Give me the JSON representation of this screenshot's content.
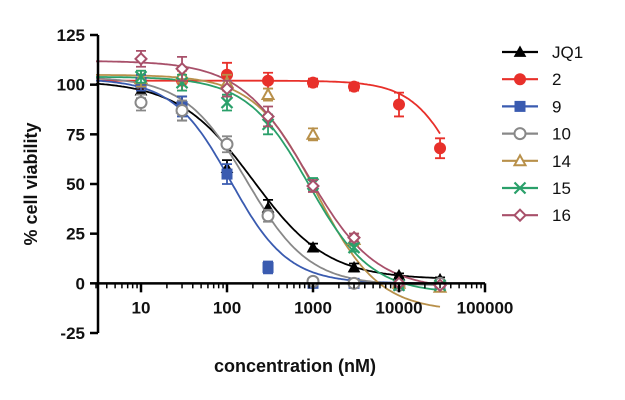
{
  "chart_data": {
    "type": "scatter",
    "xlabel": "concentration (nM)",
    "ylabel": "% cell viability",
    "x_scale": "log",
    "xlim": [
      3,
      100000
    ],
    "ylim": [
      -25,
      125
    ],
    "x_ticks": [
      10,
      100,
      1000,
      10000,
      100000
    ],
    "x_tick_labels": [
      "10",
      "100",
      "1000",
      "10000",
      "100000"
    ],
    "y_ticks": [
      -25,
      0,
      25,
      50,
      75,
      100,
      125
    ],
    "y_tick_labels": [
      "-25",
      "0",
      "25",
      "50",
      "75",
      "100",
      "125"
    ],
    "grid": false,
    "legend_position": "right",
    "series": [
      {
        "name": "JQ1",
        "color": "#000000",
        "marker": "triangle-filled",
        "x": [
          10,
          30,
          100,
          300,
          1000,
          3000,
          10000,
          30000
        ],
        "y": [
          97,
          88,
          58,
          38,
          18,
          8,
          4,
          2
        ],
        "err": [
          4,
          6,
          4,
          4,
          2,
          2,
          1,
          1
        ],
        "fit": {
          "top": 102,
          "bottom": 2,
          "ec50": 200,
          "hill": 1.0
        }
      },
      {
        "name": "2",
        "color": "#e8302a",
        "marker": "circle-filled",
        "x": [
          10,
          30,
          100,
          300,
          1000,
          3000,
          10000,
          30000
        ],
        "y": [
          101,
          102,
          105,
          102,
          101,
          99,
          90,
          68
        ],
        "err": [
          4,
          5,
          6,
          4,
          2,
          2,
          6,
          5
        ],
        "fit": {
          "top": 102,
          "bottom": 0,
          "ec50": 60000,
          "hill": 1.5
        }
      },
      {
        "name": "9",
        "color": "#3a5bb0",
        "marker": "square-filled",
        "x": [
          10,
          30,
          100,
          300,
          1000,
          3000,
          10000,
          30000
        ],
        "y": [
          101,
          89,
          55,
          8,
          0,
          0,
          -1,
          -1
        ],
        "err": [
          4,
          5,
          5,
          3,
          1,
          1,
          1,
          1
        ],
        "fit": {
          "top": 103,
          "bottom": 0,
          "ec50": 110,
          "hill": 1.3
        }
      },
      {
        "name": "10",
        "color": "#888888",
        "marker": "circle-open",
        "x": [
          10,
          30,
          100,
          300,
          1000,
          3000,
          10000,
          30000
        ],
        "y": [
          91,
          87,
          70,
          34,
          1,
          0,
          -1,
          0
        ],
        "err": [
          4,
          5,
          4,
          3,
          1,
          1,
          1,
          1
        ],
        "fit": {
          "top": 104,
          "bottom": -1,
          "ec50": 170,
          "hill": 1.2
        }
      },
      {
        "name": "14",
        "color": "#b8904a",
        "marker": "triangle-open",
        "x": [
          10,
          30,
          100,
          300,
          1000,
          3000,
          10000,
          30000
        ],
        "y": [
          103,
          105,
          101,
          95,
          75,
          22,
          0,
          -2
        ],
        "err": [
          4,
          4,
          4,
          3,
          3,
          3,
          1,
          1
        ],
        "fit": {
          "top": 105,
          "bottom": -14,
          "ec50": 1100,
          "hill": 1.2
        }
      },
      {
        "name": "15",
        "color": "#2aa06a",
        "marker": "cross",
        "x": [
          10,
          30,
          100,
          300,
          1000,
          3000,
          10000,
          30000
        ],
        "y": [
          104,
          101,
          91,
          80,
          50,
          18,
          -1,
          -1
        ],
        "err": [
          3,
          4,
          4,
          5,
          3,
          2,
          1,
          1
        ],
        "fit": {
          "top": 104,
          "bottom": -5,
          "ec50": 900,
          "hill": 1.2
        }
      },
      {
        "name": "16",
        "color": "#a8506a",
        "marker": "diamond-open",
        "x": [
          10,
          30,
          100,
          300,
          1000,
          3000,
          10000,
          30000
        ],
        "y": [
          113,
          108,
          98,
          84,
          49,
          23,
          0,
          -1
        ],
        "err": [
          4,
          6,
          4,
          5,
          3,
          2,
          1,
          1
        ],
        "fit": {
          "top": 112,
          "bottom": -3,
          "ec50": 870,
          "hill": 1.1
        }
      }
    ]
  }
}
